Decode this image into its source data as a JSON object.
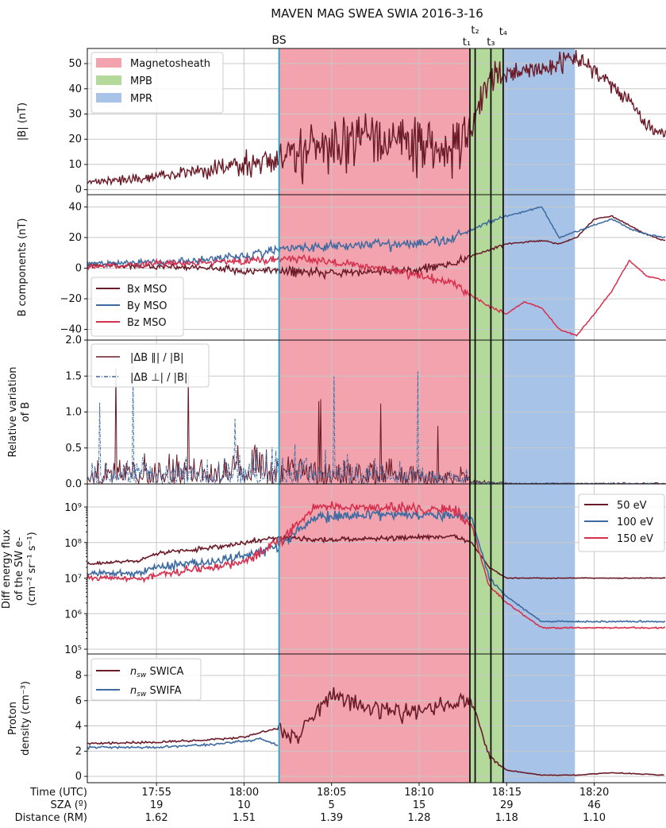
{
  "title": "MAVEN MAG SWEA SWIA 2016-3-16",
  "boundaries": [
    {
      "label": "BS",
      "time": "18:02",
      "color": "#17a2c8"
    },
    {
      "label": "t₁",
      "time": "18:12.9"
    },
    {
      "label": "t₂",
      "time": "18:13.2"
    },
    {
      "label": "t₃",
      "time": "18:14.1"
    },
    {
      "label": "t₄",
      "time": "18:14.8"
    }
  ],
  "regions": [
    {
      "name": "Magnetosheath",
      "start": "18:02",
      "end": "18:12.9",
      "color": "#f2a3ad"
    },
    {
      "name": "MPB",
      "start": "18:12.9",
      "end": "18:14.8",
      "color": "#b3d99b"
    },
    {
      "name": "MPR",
      "start": "18:14.8",
      "end": "18:18.9",
      "color": "#a7c4e8"
    }
  ],
  "colors": {
    "dark": "#6b1a27",
    "blue": "#3d6aa0",
    "red": "#d6304e"
  },
  "chart_data": [
    {
      "type": "line",
      "panel": "B magnitude",
      "ylabel": "|B| (nT)",
      "ylim": [
        -2,
        56
      ],
      "yticks": [
        0,
        10,
        20,
        30,
        40,
        50
      ],
      "legend": [
        "Magnetosheath",
        "MPB",
        "MPR"
      ],
      "legend_position": "top-left",
      "series": [
        {
          "name": "|B|",
          "color": "#6b1a27",
          "x": [
            "17:51",
            "17:55",
            "17:58",
            "18:00",
            "18:02",
            "18:04",
            "18:06",
            "18:08",
            "18:10",
            "18:12",
            "18:12.9",
            "18:13.5",
            "18:14",
            "18:15",
            "18:17",
            "18:18",
            "18:19",
            "18:20",
            "18:21",
            "18:22",
            "18:23",
            "18:24"
          ],
          "y": [
            3,
            5,
            8,
            10,
            12,
            17,
            19,
            20,
            18,
            17,
            22,
            35,
            42,
            46,
            48,
            50,
            52,
            48,
            41,
            36,
            25,
            22
          ]
        }
      ]
    },
    {
      "type": "line",
      "panel": "B components",
      "ylabel": "B components (nT)",
      "ylim": [
        -47,
        48
      ],
      "yticks": [
        -40,
        -20,
        0,
        20,
        40
      ],
      "legend_position": "bottom-left",
      "series": [
        {
          "name": "Bx MSO",
          "color": "#6b1a27",
          "x": [
            "17:51",
            "17:55",
            "17:58",
            "18:00",
            "18:02",
            "18:05",
            "18:08",
            "18:10",
            "18:12",
            "18:13",
            "18:14",
            "18:15",
            "18:17",
            "18:18",
            "18:19",
            "18:20",
            "18:21",
            "18:22",
            "18:23",
            "18:24"
          ],
          "y": [
            2,
            1,
            0,
            -2,
            -2,
            -3,
            -2,
            -1,
            3,
            8,
            12,
            16,
            18,
            16,
            20,
            32,
            34,
            28,
            22,
            18
          ]
        },
        {
          "name": "By MSO",
          "color": "#3d6aa0",
          "x": [
            "17:51",
            "17:55",
            "17:58",
            "18:00",
            "18:02",
            "18:05",
            "18:08",
            "18:10",
            "18:12",
            "18:13",
            "18:14",
            "18:15",
            "18:17",
            "18:18",
            "18:19",
            "18:20",
            "18:21",
            "18:22",
            "18:23",
            "18:24"
          ],
          "y": [
            3,
            4,
            6,
            8,
            12,
            15,
            16,
            16,
            20,
            25,
            30,
            34,
            40,
            20,
            24,
            28,
            32,
            26,
            22,
            20
          ]
        },
        {
          "name": "Bz MSO",
          "color": "#d6304e",
          "x": [
            "17:51",
            "17:55",
            "17:58",
            "18:00",
            "18:02",
            "18:05",
            "18:08",
            "18:10",
            "18:12",
            "18:13",
            "18:14",
            "18:15",
            "18:16",
            "18:17",
            "18:18",
            "18:19",
            "18:20",
            "18:21",
            "18:22",
            "18:23",
            "18:24"
          ],
          "y": [
            1,
            3,
            4,
            5,
            6,
            4,
            0,
            -5,
            -10,
            -18,
            -25,
            -30,
            -22,
            -26,
            -40,
            -44,
            -30,
            -15,
            5,
            -5,
            -8
          ]
        }
      ]
    },
    {
      "type": "line",
      "panel": "Relative variation",
      "ylabel": "Relative variation of B",
      "ylim": [
        0,
        2.0
      ],
      "yticks": [
        0.0,
        0.5,
        1.0,
        1.5,
        2.0
      ],
      "legend_position": "top-left",
      "series": [
        {
          "name": "|ΔB ∥| / |B|",
          "color": "#6b1a27"
        },
        {
          "name": "|ΔB ⊥| / |B|",
          "color": "#3d6aa0"
        }
      ]
    },
    {
      "type": "line",
      "panel": "Electron flux",
      "yscale": "log",
      "ylabel": "Diff energy flux of the SW e- (cm⁻² sr⁻¹ s⁻¹)",
      "ylim": [
        100000.0,
        1000000000.0
      ],
      "ytick_labels": [
        "10⁵",
        "10⁶",
        "10⁷",
        "10⁸",
        "10⁹"
      ],
      "legend_position": "top-right",
      "series": [
        {
          "name": "50 eV",
          "color": "#6b1a27",
          "x": [
            "17:51",
            "17:54",
            "17:55",
            "17:58",
            "18:00",
            "18:02",
            "18:04",
            "18:08",
            "18:12",
            "18:13",
            "18:14",
            "18:15",
            "18:17",
            "18:20",
            "18:24"
          ],
          "y": [
            25000000.0,
            30000000.0,
            50000000.0,
            70000000.0,
            100000000.0,
            140000000.0,
            120000000.0,
            130000000.0,
            150000000.0,
            100000000.0,
            20000000.0,
            10000000.0,
            10000000.0,
            10000000.0,
            10000000.0
          ]
        },
        {
          "name": "100 eV",
          "color": "#3d6aa0",
          "x": [
            "17:51",
            "17:54",
            "17:55",
            "17:58",
            "18:00",
            "18:02",
            "18:04",
            "18:08",
            "18:12",
            "18:13",
            "18:14",
            "18:15",
            "18:17",
            "18:20",
            "18:24"
          ],
          "y": [
            13000000.0,
            14000000.0,
            20000000.0,
            30000000.0,
            40000000.0,
            80000000.0,
            500000000.0,
            600000000.0,
            600000000.0,
            500000000.0,
            10000000.0,
            3000000.0,
            600000.0,
            600000.0,
            600000.0
          ]
        },
        {
          "name": "150 eV",
          "color": "#d6304e",
          "x": [
            "17:51",
            "17:54",
            "17:55",
            "17:58",
            "18:00",
            "18:02",
            "18:04",
            "18:08",
            "18:12",
            "18:13",
            "18:14",
            "18:15",
            "18:17",
            "18:20",
            "18:24"
          ],
          "y": [
            10000000.0,
            10000000.0,
            12000000.0,
            20000000.0,
            30000000.0,
            100000000.0,
            1000000000.0,
            1000000000.0,
            800000000.0,
            300000000.0,
            6000000.0,
            2000000.0,
            400000.0,
            400000.0,
            400000.0
          ]
        }
      ]
    },
    {
      "type": "line",
      "panel": "Proton density",
      "ylabel": "Proton density (cm⁻³)",
      "ylim": [
        -0.5,
        9.7
      ],
      "yticks": [
        0,
        2,
        4,
        6,
        8
      ],
      "legend_position": "top-left",
      "series": [
        {
          "name": "n_sw SWICA",
          "label_main": "n",
          "label_sub": "sw",
          "label_rest": " SWICA",
          "color": "#6b1a27",
          "x": [
            "17:51",
            "17:55",
            "17:58",
            "18:00",
            "18:01",
            "18:02",
            "18:03",
            "18:05",
            "18:07",
            "18:09",
            "18:11",
            "18:12.9",
            "18:13.5",
            "18:14",
            "18:15",
            "18:17",
            "18:19",
            "18:21",
            "18:24"
          ],
          "y": [
            2.6,
            2.7,
            2.9,
            3.1,
            3.5,
            3.8,
            3,
            6.5,
            5.5,
            5,
            5.5,
            6.2,
            4,
            1.5,
            0.5,
            0.1,
            0.1,
            0.3,
            0.1
          ]
        },
        {
          "name": "n_sw SWIFA",
          "label_main": "n",
          "label_sub": "sw",
          "label_rest": " SWIFA",
          "color": "#3d6aa0",
          "x": [
            "17:51",
            "17:55",
            "17:58",
            "18:00",
            "18:01",
            "18:02"
          ],
          "y": [
            2.3,
            2.3,
            2.5,
            2.8,
            3,
            2.4
          ]
        }
      ]
    }
  ],
  "xaxis": {
    "row_labels": [
      "Time (UTC)",
      "SZA (º)",
      "Distance (RM)"
    ],
    "ticks": [
      {
        "time": "17:55",
        "sza": "19",
        "dist": "1.62"
      },
      {
        "time": "18:00",
        "sza": "10",
        "dist": "1.51"
      },
      {
        "time": "18:05",
        "sza": "5",
        "dist": "1.39"
      },
      {
        "time": "18:10",
        "sza": "15",
        "dist": "1.28"
      },
      {
        "time": "18:15",
        "sza": "29",
        "dist": "1.18"
      },
      {
        "time": "18:20",
        "sza": "46",
        "dist": "1.10"
      }
    ]
  }
}
